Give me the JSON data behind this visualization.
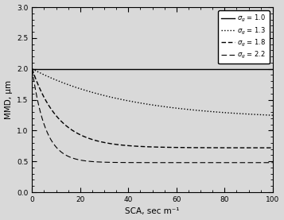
{
  "title": "",
  "xlabel": "SCA, sec m⁻¹",
  "ylabel": "MMD, μm",
  "xlim": [
    0,
    100
  ],
  "ylim": [
    0.0,
    3.0
  ],
  "xticks": [
    0,
    20,
    40,
    60,
    80,
    100
  ],
  "yticks": [
    0.0,
    0.5,
    1.0,
    1.5,
    2.0,
    2.5,
    3.0
  ],
  "legend_entries": [
    {
      "label": "$\\sigma_g$ = 1.0",
      "linestyle": "-",
      "linewidth": 1.0
    },
    {
      "label": "$\\sigma_g$ = 1.3",
      "linestyle": ":",
      "linewidth": 1.0
    },
    {
      "label": "$\\sigma_g$ = 1.8",
      "linestyle": "--",
      "linewidth": 1.0
    },
    {
      "label": "$\\sigma_g$ = 2.2",
      "linestyle": "--",
      "linewidth": 0.8
    }
  ],
  "color": "#000000",
  "background": "#d9d9d9",
  "curve_params": [
    {
      "MMD0": 2.0,
      "asym": 2.0,
      "b": 0.0,
      "linestyle": "-",
      "linewidth": 1.0
    },
    {
      "MMD0": 2.0,
      "asym": 1.18,
      "b": 0.025,
      "linestyle": ":",
      "linewidth": 1.0
    },
    {
      "MMD0": 2.0,
      "asym": 0.72,
      "b": 0.09,
      "linestyle": "--",
      "linewidth": 1.0
    },
    {
      "MMD0": 2.0,
      "asym": 0.48,
      "b": 0.18,
      "linestyle": "--",
      "linewidth": 0.8
    }
  ],
  "SCA_max": 100,
  "SCA_points": 1000
}
